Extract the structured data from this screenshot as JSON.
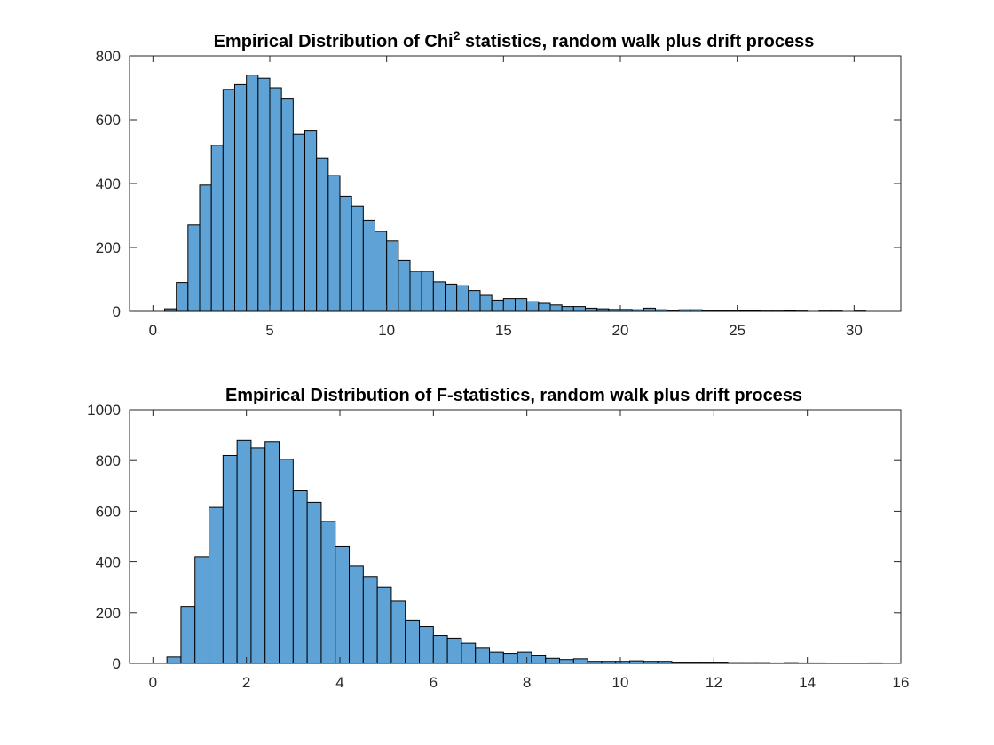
{
  "figure": {
    "bar_color": "#5fa3d6",
    "edge_color": "#000000",
    "axis_color": "#262626"
  },
  "chart_data": [
    {
      "type": "bar",
      "subtype": "histogram",
      "title": "Empirical Distribution of Chi",
      "title_superscript": "2",
      "title_rest": " statistics, random walk plus drift process",
      "xlabel": "",
      "ylabel": "",
      "xlim": [
        -1.0,
        32.0
      ],
      "ylim": [
        0,
        800
      ],
      "xticks": [
        0,
        5,
        10,
        15,
        20,
        25,
        30
      ],
      "yticks": [
        0,
        200,
        400,
        600,
        800
      ],
      "bin_start": 0.5,
      "bin_width": 0.5,
      "values": [
        8,
        90,
        270,
        395,
        520,
        695,
        710,
        740,
        730,
        700,
        665,
        555,
        565,
        480,
        425,
        360,
        330,
        285,
        250,
        220,
        160,
        125,
        125,
        92,
        85,
        80,
        65,
        50,
        35,
        40,
        40,
        30,
        25,
        20,
        15,
        15,
        10,
        8,
        6,
        6,
        5,
        10,
        5,
        3,
        5,
        5,
        3,
        3,
        3,
        2,
        2,
        1,
        1,
        2,
        1,
        0,
        1,
        1,
        0,
        1,
        0
      ]
    },
    {
      "type": "bar",
      "subtype": "histogram",
      "title": "Empirical Distribution of F-statistics, random walk plus drift process",
      "title_superscript": "",
      "title_rest": "",
      "xlabel": "",
      "ylabel": "",
      "xlim": [
        -0.5,
        16.0
      ],
      "ylim": [
        0,
        1000
      ],
      "xticks": [
        0,
        2,
        4,
        6,
        8,
        10,
        12,
        14,
        16
      ],
      "yticks": [
        0,
        200,
        400,
        600,
        800,
        1000
      ],
      "bin_start": 0.3,
      "bin_width": 0.3,
      "values": [
        25,
        225,
        420,
        615,
        820,
        880,
        850,
        875,
        805,
        680,
        635,
        560,
        460,
        385,
        340,
        300,
        245,
        170,
        145,
        110,
        100,
        80,
        60,
        45,
        40,
        45,
        30,
        20,
        15,
        18,
        8,
        8,
        8,
        10,
        8,
        8,
        5,
        5,
        5,
        5,
        3,
        3,
        3,
        2,
        3,
        2,
        2,
        1,
        1,
        1,
        2
      ]
    }
  ]
}
